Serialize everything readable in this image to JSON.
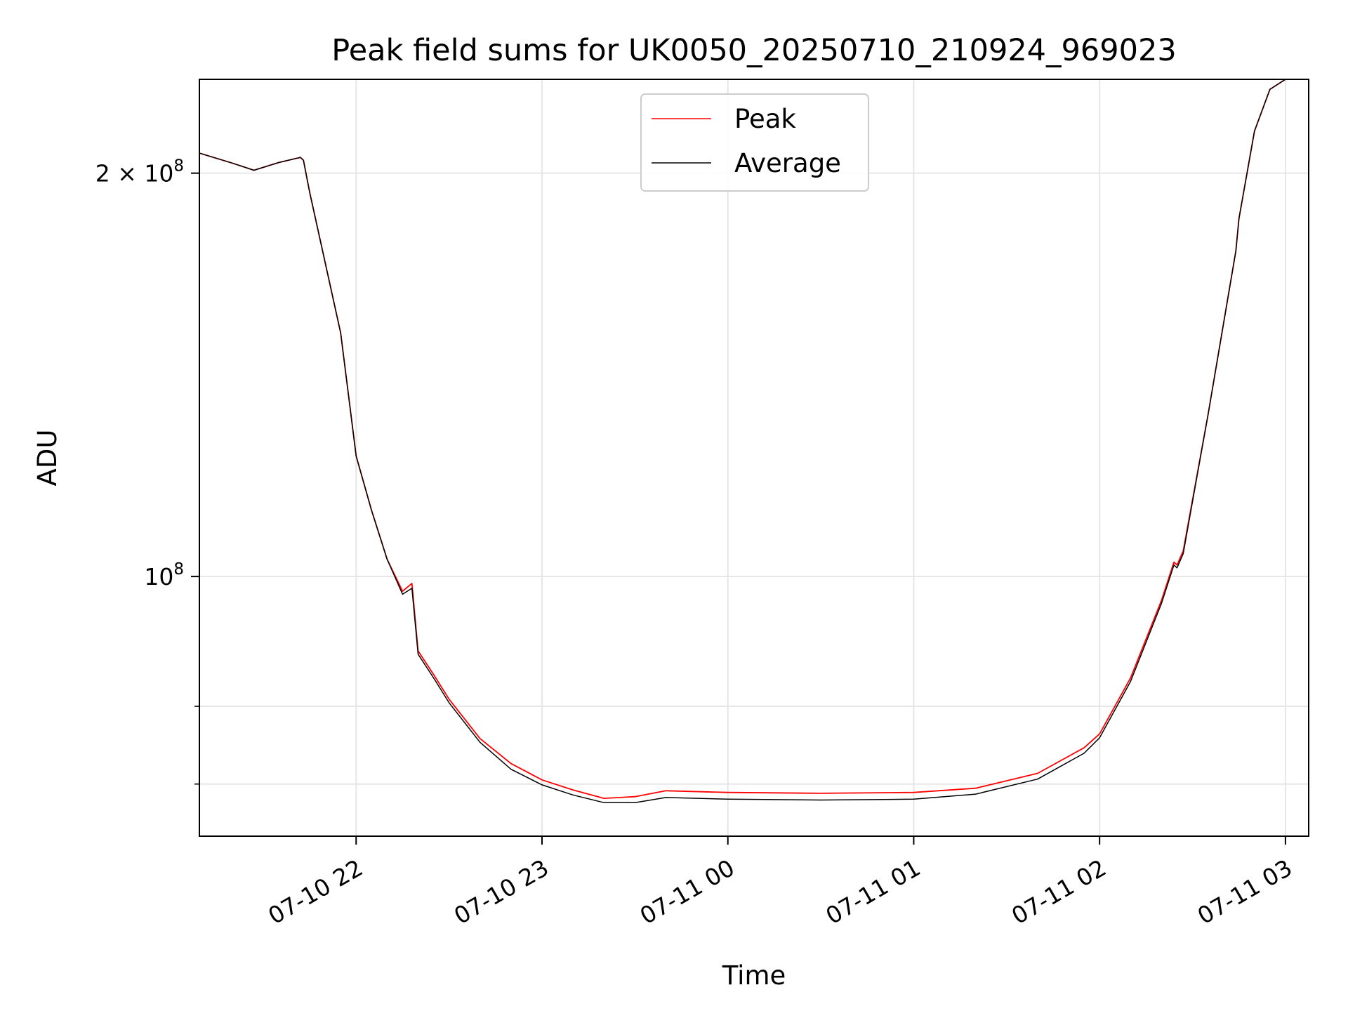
{
  "chart_data": {
    "type": "line",
    "title": "Peak field sums for UK0050_20250710_210924_969023",
    "xlabel": "Time",
    "ylabel": "ADU",
    "yscale": "log",
    "ylim": [
      64000000,
      235000000
    ],
    "xlim": [
      "2025-07-10 21:09:24",
      "2025-07-11 03:07:30"
    ],
    "grid": true,
    "legend_position": "top-center",
    "x_ticks": [
      {
        "t": "2025-07-10 22:00",
        "label": "07-10 22"
      },
      {
        "t": "2025-07-10 23:00",
        "label": "07-10 23"
      },
      {
        "t": "2025-07-11 00:00",
        "label": "07-11 00"
      },
      {
        "t": "2025-07-11 01:00",
        "label": "07-11 01"
      },
      {
        "t": "2025-07-11 02:00",
        "label": "07-11 02"
      },
      {
        "t": "2025-07-11 03:00",
        "label": "07-11 03"
      }
    ],
    "y_ticks_major": [
      {
        "value": 100000000,
        "base": "10",
        "exp": "8",
        "coef": ""
      },
      {
        "value": 200000000,
        "base": "10",
        "exp": "8",
        "coef": "2 × "
      }
    ],
    "y_ticks_minor": [
      70000000,
      80000000
    ],
    "colors": {
      "peak": "#ff0000",
      "average": "#000000",
      "grid": "#e6e6e6"
    },
    "series": [
      {
        "name": "Peak",
        "color": "#ff0000",
        "points": [
          [
            "2025-07-10 21:09:24",
            207000000
          ],
          [
            "2025-07-10 21:20",
            203500000
          ],
          [
            "2025-07-10 21:27",
            201000000
          ],
          [
            "2025-07-10 21:35",
            203700000
          ],
          [
            "2025-07-10 21:42",
            205500000
          ],
          [
            "2025-07-10 21:43",
            204500000
          ],
          [
            "2025-07-10 21:45",
            193500000
          ],
          [
            "2025-07-10 21:55",
            152000000
          ],
          [
            "2025-07-10 22:00",
            123000000
          ],
          [
            "2025-07-10 22:05",
            112000000
          ],
          [
            "2025-07-10 22:10",
            103000000
          ],
          [
            "2025-07-10 22:15",
            97500000
          ],
          [
            "2025-07-10 22:18",
            98800000
          ],
          [
            "2025-07-10 22:20",
            88000000
          ],
          [
            "2025-07-10 22:25",
            84500000
          ],
          [
            "2025-07-10 22:30",
            81000000
          ],
          [
            "2025-07-10 22:40",
            75700000
          ],
          [
            "2025-07-10 22:50",
            72500000
          ],
          [
            "2025-07-10 23:00",
            70500000
          ],
          [
            "2025-07-10 23:10",
            69300000
          ],
          [
            "2025-07-10 23:20",
            68300000
          ],
          [
            "2025-07-10 23:30",
            68500000
          ],
          [
            "2025-07-10 23:40",
            69200000
          ],
          [
            "2025-07-11 00:00",
            69000000
          ],
          [
            "2025-07-11 00:30",
            68900000
          ],
          [
            "2025-07-11 01:00",
            69000000
          ],
          [
            "2025-07-11 01:20",
            69500000
          ],
          [
            "2025-07-11 01:40",
            71300000
          ],
          [
            "2025-07-11 01:55",
            74500000
          ],
          [
            "2025-07-11 02:00",
            76300000
          ],
          [
            "2025-07-11 02:10",
            84000000
          ],
          [
            "2025-07-11 02:20",
            96000000
          ],
          [
            "2025-07-11 02:24",
            102500000
          ],
          [
            "2025-07-11 02:25",
            102000000
          ],
          [
            "2025-07-11 02:27",
            104500000
          ],
          [
            "2025-07-11 02:35",
            132000000
          ],
          [
            "2025-07-11 02:44",
            175000000
          ],
          [
            "2025-07-11 02:45",
            185000000
          ],
          [
            "2025-07-11 02:50",
            215000000
          ],
          [
            "2025-07-11 02:55",
            231000000
          ],
          [
            "2025-07-11 03:00",
            235000000
          ]
        ]
      },
      {
        "name": "Average",
        "color": "#000000",
        "points": [
          [
            "2025-07-10 21:09:24",
            207000000
          ],
          [
            "2025-07-10 21:20",
            203500000
          ],
          [
            "2025-07-10 21:27",
            201000000
          ],
          [
            "2025-07-10 21:35",
            203700000
          ],
          [
            "2025-07-10 21:42",
            205500000
          ],
          [
            "2025-07-10 21:43",
            204500000
          ],
          [
            "2025-07-10 21:45",
            193500000
          ],
          [
            "2025-07-10 21:55",
            152000000
          ],
          [
            "2025-07-10 22:00",
            123000000
          ],
          [
            "2025-07-10 22:05",
            112000000
          ],
          [
            "2025-07-10 22:10",
            103000000
          ],
          [
            "2025-07-10 22:15",
            97000000
          ],
          [
            "2025-07-10 22:18",
            98000000
          ],
          [
            "2025-07-10 22:20",
            87500000
          ],
          [
            "2025-07-10 22:25",
            84000000
          ],
          [
            "2025-07-10 22:30",
            80500000
          ],
          [
            "2025-07-10 22:40",
            75200000
          ],
          [
            "2025-07-10 22:50",
            71800000
          ],
          [
            "2025-07-10 23:00",
            69900000
          ],
          [
            "2025-07-10 23:10",
            68700000
          ],
          [
            "2025-07-10 23:20",
            67800000
          ],
          [
            "2025-07-10 23:30",
            67800000
          ],
          [
            "2025-07-10 23:40",
            68400000
          ],
          [
            "2025-07-11 00:00",
            68200000
          ],
          [
            "2025-07-11 00:30",
            68100000
          ],
          [
            "2025-07-11 01:00",
            68200000
          ],
          [
            "2025-07-11 01:20",
            68800000
          ],
          [
            "2025-07-11 01:40",
            70600000
          ],
          [
            "2025-07-11 01:55",
            73800000
          ],
          [
            "2025-07-11 02:00",
            75800000
          ],
          [
            "2025-07-11 02:10",
            83500000
          ],
          [
            "2025-07-11 02:20",
            95500000
          ],
          [
            "2025-07-11 02:24",
            102000000
          ],
          [
            "2025-07-11 02:25",
            101500000
          ],
          [
            "2025-07-11 02:27",
            104000000
          ],
          [
            "2025-07-11 02:35",
            132000000
          ],
          [
            "2025-07-11 02:44",
            175000000
          ],
          [
            "2025-07-11 02:45",
            185000000
          ],
          [
            "2025-07-11 02:50",
            215000000
          ],
          [
            "2025-07-11 02:55",
            231000000
          ],
          [
            "2025-07-11 03:00",
            235000000
          ]
        ]
      }
    ]
  }
}
